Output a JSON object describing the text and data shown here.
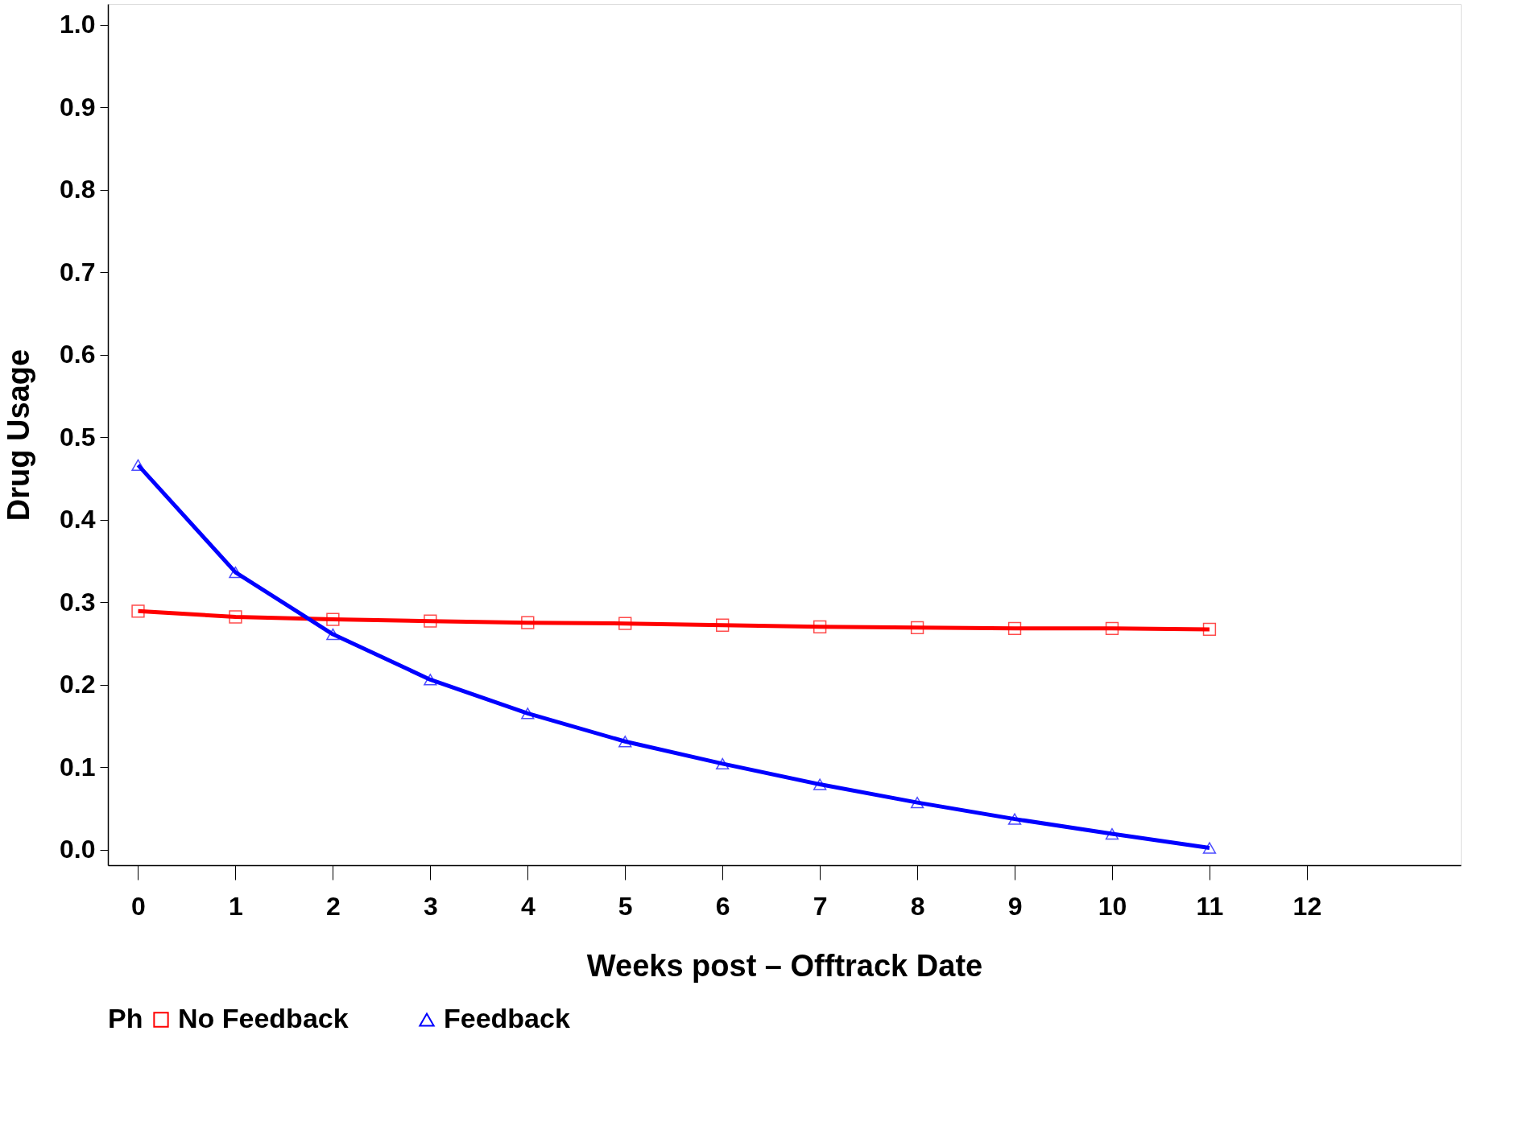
{
  "chart_data": {
    "type": "line",
    "xlabel": "Weeks post – Offtrack Date",
    "ylabel": "Drug Usage",
    "legend_title": "Ph",
    "x": [
      0,
      1,
      2,
      3,
      4,
      5,
      6,
      7,
      8,
      9,
      10,
      11
    ],
    "series": [
      {
        "name": "No Feedback",
        "color": "#ff0000",
        "marker": "square",
        "values": [
          0.289,
          0.282,
          0.279,
          0.277,
          0.275,
          0.274,
          0.272,
          0.27,
          0.269,
          0.268,
          0.268,
          0.267
        ]
      },
      {
        "name": "Feedback",
        "color": "#0000ff",
        "marker": "triangle",
        "values": [
          0.466,
          0.336,
          0.261,
          0.206,
          0.165,
          0.131,
          0.104,
          0.079,
          0.057,
          0.037,
          0.019,
          0.002
        ]
      }
    ],
    "xlim": [
      -0.31,
      13.58
    ],
    "xticks": [
      0,
      1,
      2,
      3,
      4,
      5,
      6,
      7,
      8,
      9,
      10,
      11,
      12
    ],
    "ylim": [
      -0.019,
      1.025
    ],
    "yticks": [
      {
        "value": 0,
        "label": "0.0"
      },
      0.1,
      0.2,
      0.3,
      0.4,
      0.5,
      0.6,
      0.7,
      0.8,
      0.9,
      {
        "value": 1,
        "label": "1.0"
      }
    ],
    "grid": false,
    "legend": "bottom",
    "line_style": "solid"
  }
}
